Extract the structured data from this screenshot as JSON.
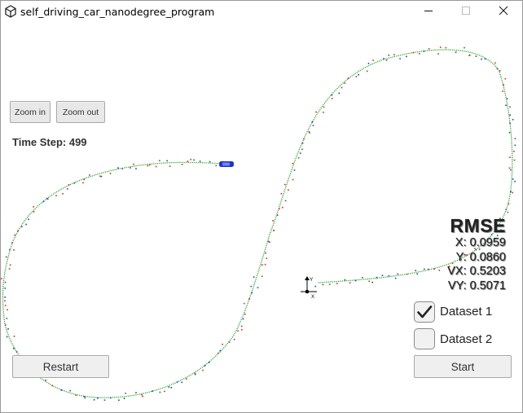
{
  "window": {
    "title": "self_driving_car_nanodegree_program",
    "app_icon": "unity-logo-icon",
    "controls": [
      "minimize-icon",
      "maximize-icon",
      "close-icon"
    ]
  },
  "toolbar": {
    "zoom_in_label": "Zoom in",
    "zoom_out_label": "Zoom out"
  },
  "status": {
    "time_step_label": "Time Step:",
    "time_step_value": "499"
  },
  "rmse": {
    "title": "RMSE",
    "x": "X: 0.0959",
    "y": "Y: 0.0860",
    "vx": "VX: 0.5203",
    "vy": "VY: 0.5071"
  },
  "datasets": [
    {
      "label": "Dataset 1",
      "checked": true
    },
    {
      "label": "Dataset 2",
      "checked": false
    }
  ],
  "buttons": {
    "restart_label": "Restart",
    "start_label": "Start"
  },
  "scene": {
    "axes_labels": {
      "y": "Y",
      "x": "X"
    },
    "colors": {
      "ground_truth": "#22aa22",
      "lidar": "#d62728",
      "radar": "#1f3fbf",
      "estimate": "#7f2f9f",
      "car": "#2233cc"
    }
  }
}
